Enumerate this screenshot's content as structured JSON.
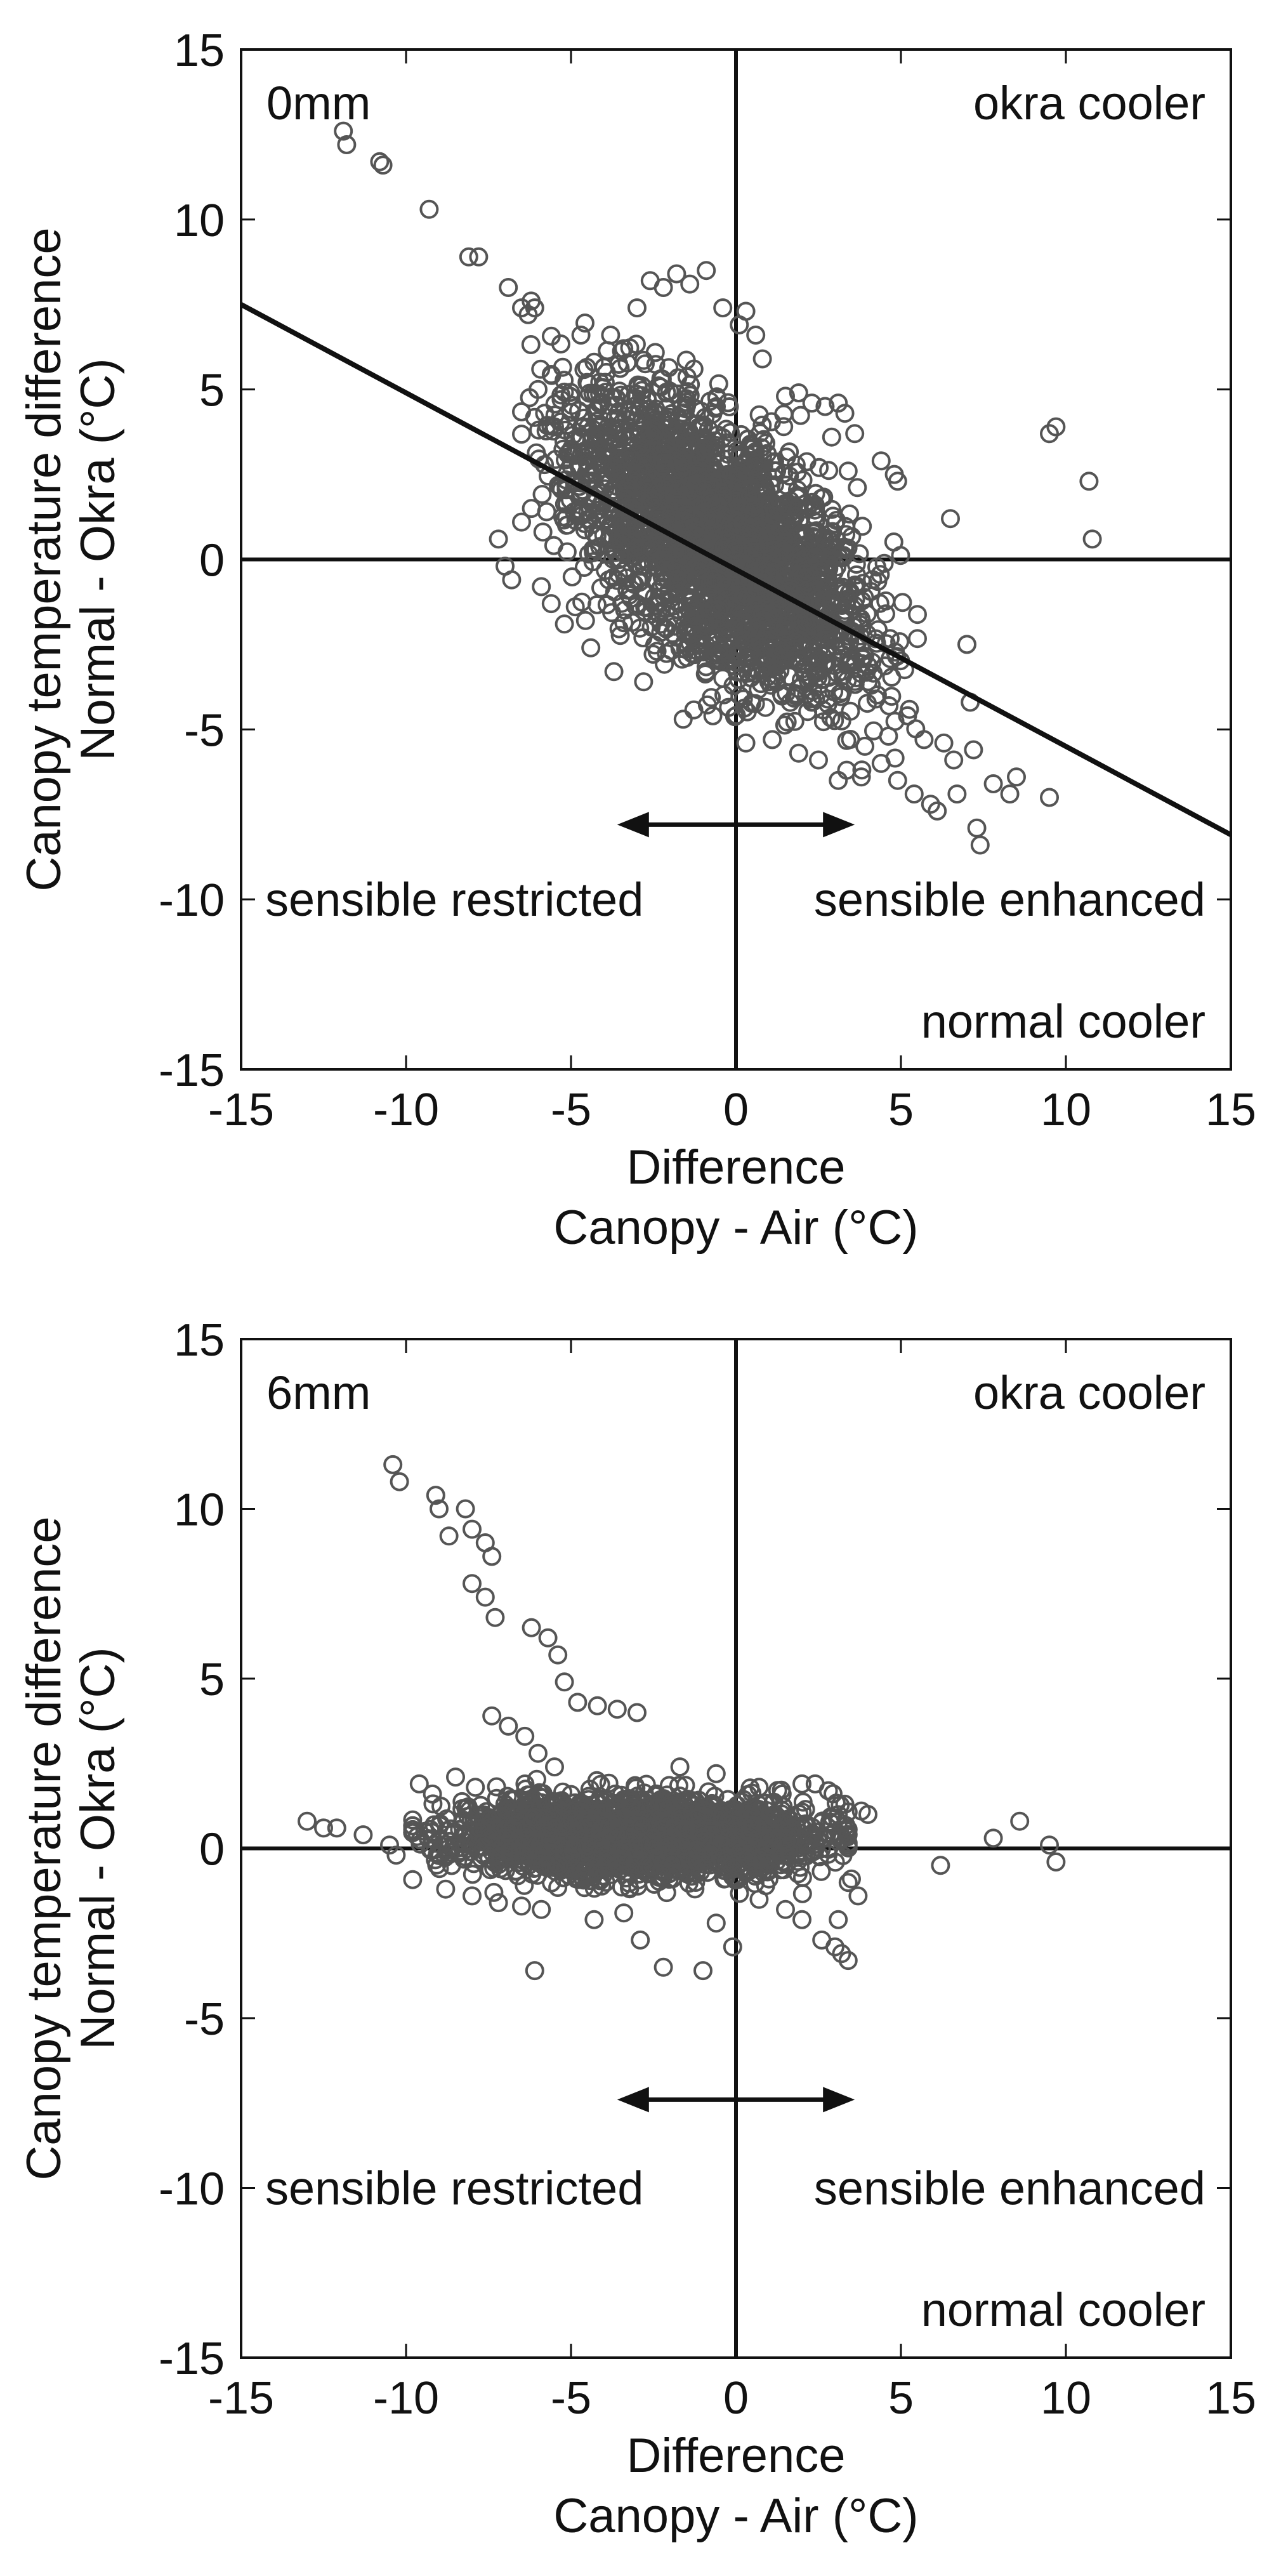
{
  "chart_data": [
    {
      "type": "scatter",
      "panel_label": "0mm",
      "xlabel": [
        "Difference",
        "Canopy - Air (°C)"
      ],
      "ylabel": [
        "Canopy temperature difference",
        "Normal - Okra (°C)"
      ],
      "xlim": [
        -15,
        15
      ],
      "ylim": [
        -15,
        15
      ],
      "xticks": [
        "-15",
        "-10",
        "-5",
        "0",
        "5",
        "10",
        "15"
      ],
      "yticks": [
        "15",
        "10",
        "5",
        "0",
        "-5",
        "-10",
        "-15"
      ],
      "annotations": {
        "top_right": "okra cooler",
        "bottom_right": "normal cooler",
        "left": "sensible restricted",
        "right": "sensible enhanced"
      },
      "arrow": {
        "from": -3.6,
        "to": 3.6,
        "y": -7.8
      },
      "reference_lines": {
        "x": 0,
        "y": 0
      },
      "fit_line": {
        "x": [
          -15,
          15
        ],
        "y": [
          7.5,
          -8.1
        ]
      },
      "series": [
        {
          "marker": "open-circle",
          "color": "#555555",
          "points": [
            [
              -11.9,
              12.6
            ],
            [
              -11.8,
              12.2
            ],
            [
              -10.8,
              11.7
            ],
            [
              -10.7,
              11.6
            ],
            [
              -9.3,
              10.3
            ],
            [
              -8.1,
              8.9
            ],
            [
              -7.8,
              8.9
            ],
            [
              -6.9,
              8.0
            ],
            [
              -6.5,
              7.4
            ],
            [
              -6.3,
              7.2
            ],
            [
              -6.1,
              7.4
            ],
            [
              -7.2,
              0.6
            ],
            [
              -7.0,
              -0.2
            ],
            [
              -6.8,
              -0.6
            ],
            [
              -6.5,
              1.1
            ],
            [
              -6.2,
              1.5
            ],
            [
              -6.0,
              5.0
            ],
            [
              -5.8,
              4.3
            ],
            [
              -5.5,
              3.9
            ],
            [
              -5.3,
              4.7
            ],
            [
              -5.1,
              3.1
            ],
            [
              -4.7,
              6.6
            ],
            [
              -4.3,
              5.8
            ],
            [
              -3.8,
              6.6
            ],
            [
              -3.4,
              6.2
            ],
            [
              -3.0,
              7.4
            ],
            [
              -2.6,
              8.2
            ],
            [
              -2.2,
              8.0
            ],
            [
              -1.8,
              8.4
            ],
            [
              -1.4,
              8.1
            ],
            [
              -0.9,
              8.5
            ],
            [
              -0.4,
              7.4
            ],
            [
              0.1,
              6.9
            ],
            [
              0.6,
              6.6
            ],
            [
              0.8,
              5.9
            ],
            [
              0.3,
              7.3
            ],
            [
              1.5,
              4.8
            ],
            [
              1.9,
              4.9
            ],
            [
              2.3,
              4.6
            ],
            [
              2.7,
              4.5
            ],
            [
              3.1,
              4.6
            ],
            [
              3.3,
              4.3
            ],
            [
              2.9,
              3.6
            ],
            [
              3.6,
              3.7
            ],
            [
              4.4,
              2.9
            ],
            [
              4.8,
              2.5
            ],
            [
              4.9,
              2.3
            ],
            [
              3.4,
              2.6
            ],
            [
              9.7,
              3.9
            ],
            [
              9.5,
              3.7
            ],
            [
              10.7,
              2.3
            ],
            [
              10.8,
              0.6
            ],
            [
              6.5,
              1.2
            ],
            [
              -1.6,
              -4.7
            ],
            [
              -0.7,
              -4.6
            ],
            [
              0.3,
              -5.4
            ],
            [
              1.1,
              -5.3
            ],
            [
              1.9,
              -5.7
            ],
            [
              2.5,
              -5.9
            ],
            [
              3.1,
              -6.5
            ],
            [
              3.8,
              -6.4
            ],
            [
              4.4,
              -6.0
            ],
            [
              4.9,
              -6.5
            ],
            [
              5.4,
              -6.9
            ],
            [
              5.9,
              -7.2
            ],
            [
              6.1,
              -7.4
            ],
            [
              6.7,
              -6.9
            ],
            [
              7.3,
              -7.9
            ],
            [
              7.4,
              -8.4
            ],
            [
              7.8,
              -6.6
            ],
            [
              8.3,
              -6.9
            ],
            [
              8.5,
              -6.4
            ],
            [
              9.5,
              -7.0
            ],
            [
              5.7,
              -5.3
            ],
            [
              6.3,
              -5.4
            ],
            [
              6.6,
              -5.9
            ],
            [
              7.1,
              -4.2
            ],
            [
              7.0,
              -2.5
            ],
            [
              7.2,
              -5.6
            ],
            [
              5.2,
              -4.6
            ],
            [
              4.1,
              -3.7
            ],
            [
              3.5,
              -3.0
            ],
            [
              3.7,
              -1.7
            ],
            [
              2.9,
              -1.3
            ],
            [
              2.3,
              -4.2
            ],
            [
              1.5,
              -2.9
            ],
            [
              -2.8,
              -3.6
            ],
            [
              -3.7,
              -3.3
            ],
            [
              -4.4,
              -2.6
            ],
            [
              -5.2,
              -1.9
            ],
            [
              -5.6,
              -1.3
            ],
            [
              -5.9,
              -0.8
            ]
          ]
        }
      ]
    },
    {
      "type": "scatter",
      "panel_label": "6mm",
      "xlabel": [
        "Difference",
        "Canopy - Air (°C)"
      ],
      "ylabel": [
        "Canopy temperature difference",
        "Normal - Okra (°C)"
      ],
      "xlim": [
        -15,
        15
      ],
      "ylim": [
        -15,
        15
      ],
      "xticks": [
        "-15",
        "-10",
        "-5",
        "0",
        "5",
        "10",
        "15"
      ],
      "yticks": [
        "15",
        "10",
        "5",
        "0",
        "-5",
        "-10",
        "-15"
      ],
      "annotations": {
        "top_right": "okra cooler",
        "bottom_right": "normal cooler",
        "left": "sensible restricted",
        "right": "sensible enhanced"
      },
      "arrow": {
        "from": -3.6,
        "to": 3.6,
        "y": -7.4
      },
      "reference_lines": {
        "x": 0,
        "y": 0
      },
      "series": [
        {
          "marker": "open-circle",
          "color": "#555555",
          "points": [
            [
              -10.4,
              11.3
            ],
            [
              -10.2,
              10.8
            ],
            [
              -9.1,
              10.4
            ],
            [
              -9.0,
              10.0
            ],
            [
              -8.2,
              10.0
            ],
            [
              -8.0,
              9.4
            ],
            [
              -7.6,
              9.0
            ],
            [
              -7.4,
              8.6
            ],
            [
              -8.7,
              9.2
            ],
            [
              -8.0,
              7.8
            ],
            [
              -7.6,
              7.4
            ],
            [
              -7.3,
              6.8
            ],
            [
              -6.2,
              6.5
            ],
            [
              -5.7,
              6.2
            ],
            [
              -5.4,
              5.7
            ],
            [
              -5.2,
              4.9
            ],
            [
              -4.8,
              4.3
            ],
            [
              -4.2,
              4.2
            ],
            [
              -3.6,
              4.1
            ],
            [
              -3.0,
              4.0
            ],
            [
              -7.4,
              3.9
            ],
            [
              -6.9,
              3.6
            ],
            [
              -6.4,
              3.3
            ],
            [
              -6.0,
              2.8
            ],
            [
              -5.5,
              2.4
            ],
            [
              -13.0,
              0.8
            ],
            [
              -12.5,
              0.6
            ],
            [
              -12.1,
              0.6
            ],
            [
              -11.3,
              0.4
            ],
            [
              -10.5,
              0.1
            ],
            [
              -10.3,
              -0.2
            ],
            [
              -9.6,
              1.9
            ],
            [
              -9.2,
              1.6
            ],
            [
              -8.5,
              2.1
            ],
            [
              -7.9,
              1.8
            ],
            [
              -8.8,
              -1.2
            ],
            [
              -8.0,
              -1.4
            ],
            [
              -7.2,
              -1.6
            ],
            [
              -6.5,
              -1.7
            ],
            [
              -5.9,
              -1.8
            ],
            [
              -6.1,
              -3.6
            ],
            [
              -2.9,
              -2.7
            ],
            [
              -2.2,
              -3.5
            ],
            [
              -1.0,
              -3.6
            ],
            [
              -0.1,
              -2.9
            ],
            [
              -0.6,
              -2.2
            ],
            [
              0.7,
              -1.5
            ],
            [
              1.5,
              -1.8
            ],
            [
              2.0,
              -2.1
            ],
            [
              2.6,
              -2.7
            ],
            [
              3.0,
              -2.9
            ],
            [
              3.2,
              -3.1
            ],
            [
              3.4,
              -3.3
            ],
            [
              3.7,
              -1.4
            ],
            [
              3.5,
              -0.9
            ],
            [
              2.4,
              1.9
            ],
            [
              2.8,
              1.7
            ],
            [
              3.3,
              1.3
            ],
            [
              3.8,
              1.1
            ],
            [
              4.0,
              1.0
            ],
            [
              2.0,
              1.9
            ],
            [
              1.4,
              1.6
            ],
            [
              0.7,
              1.8
            ],
            [
              -0.6,
              2.2
            ],
            [
              -1.7,
              2.4
            ],
            [
              6.2,
              -0.5
            ],
            [
              7.8,
              0.3
            ],
            [
              8.6,
              0.8
            ],
            [
              9.5,
              0.1
            ],
            [
              9.7,
              -0.4
            ],
            [
              -4.3,
              -2.1
            ],
            [
              -3.4,
              -1.9
            ],
            [
              -2.1,
              -1.3
            ],
            [
              1.0,
              -0.9
            ],
            [
              3.1,
              -2.1
            ]
          ]
        }
      ]
    }
  ]
}
